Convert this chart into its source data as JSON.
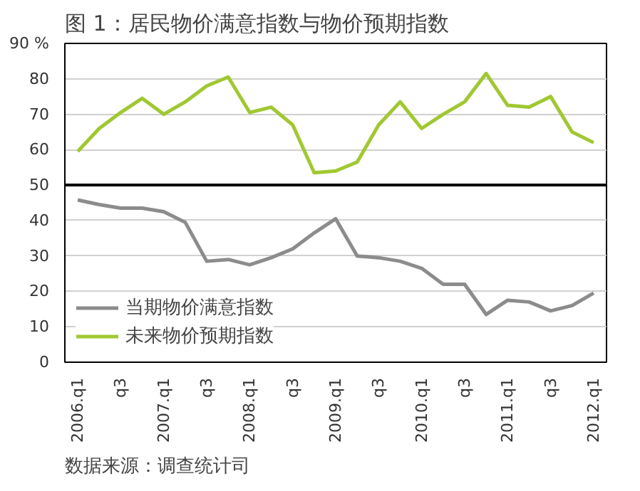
{
  "chart_data": {
    "type": "line",
    "title": "图 1：居民物价满意指数与物价预期指数",
    "categories": [
      "2006.q1",
      null,
      "q3",
      null,
      "2007.q1",
      null,
      "q3",
      null,
      "2008.q1",
      null,
      "q3",
      null,
      "2009.q1",
      null,
      "q3",
      null,
      "2010.q1",
      null,
      "q3",
      null,
      "2011.q1",
      null,
      "q3",
      null,
      "2012.q1"
    ],
    "series": [
      {
        "name": "当期物价满意指数",
        "color": "#8c8c8c",
        "values": [
          45.8,
          44.5,
          43.5,
          43.5,
          42.5,
          39.5,
          28.5,
          29,
          27.5,
          29.5,
          32,
          36.5,
          40.5,
          30,
          29.5,
          28.5,
          26.5,
          22,
          22,
          13.5,
          17.5,
          17,
          14.5,
          16,
          19.5
        ]
      },
      {
        "name": "未来物价预期指数",
        "color": "#a0c832",
        "values": [
          59.5,
          66,
          70.5,
          74.5,
          70,
          73.5,
          78,
          80.5,
          70.5,
          72,
          67,
          53.5,
          54,
          56.5,
          67,
          73.5,
          66,
          70,
          73.5,
          81.5,
          72.5,
          72,
          75,
          65,
          62
        ]
      }
    ],
    "ylim": [
      0,
      90
    ],
    "yticks": [
      0,
      10,
      20,
      30,
      40,
      50,
      60,
      70,
      80,
      {
        "value": 90,
        "label": "90 %"
      }
    ],
    "ref_lines": [
      {
        "axis": "y",
        "value": 50,
        "color": "#000000"
      }
    ],
    "grid": "y",
    "legend": "bottom left",
    "marker": "none",
    "line_style": "solid",
    "annotations": [
      "数据来源：调查统计司"
    ]
  }
}
